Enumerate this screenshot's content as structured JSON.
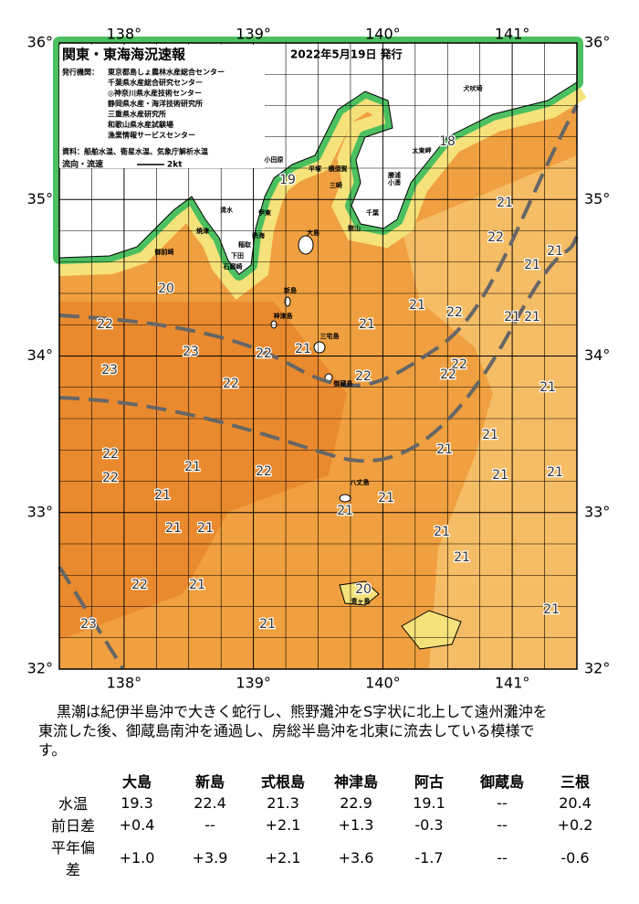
{
  "header": {
    "title": "関東・東海海況速報",
    "date": "2022年5月19日 発行",
    "issuer_label": "発行機関：",
    "issuers": [
      "東京都島しょ農林水産総合センター",
      "千葉県水産総合研究センター",
      "◎神奈川県水産技術センター",
      "静岡県水産・海洋技術研究所",
      "三重県水産研究所",
      "和歌山県水産試験場",
      "漁業情報サービスセンター"
    ],
    "source": "資料：船舶水温、衛星水温、気象庁解析水温",
    "legend_label": "流向・流速",
    "legend_speed": "2kt"
  },
  "map": {
    "xlim": [
      137.5,
      141.5
    ],
    "ylim": [
      32,
      36
    ],
    "xticks": [
      {
        "value": 138,
        "label": "138°"
      },
      {
        "value": 139,
        "label": "139°"
      },
      {
        "value": 140,
        "label": "140°"
      },
      {
        "value": 141,
        "label": "141°"
      }
    ],
    "yticks": [
      {
        "value": 32,
        "label": "32°"
      },
      {
        "value": 33,
        "label": "33°"
      },
      {
        "value": 34,
        "label": "34°"
      },
      {
        "value": 35,
        "label": "35°"
      },
      {
        "value": 36,
        "label": "36°"
      }
    ],
    "temperature_labels": [
      "18",
      "19",
      "21",
      "22",
      "21",
      "21",
      "20",
      "22",
      "21",
      "21",
      "21",
      "21",
      "22",
      "23",
      "22",
      "21",
      "22",
      "22",
      "22",
      "23",
      "22",
      "21",
      "21",
      "21",
      "22",
      "21",
      "22",
      "22",
      "21",
      "21",
      "21",
      "21",
      "21",
      "21",
      "21",
      "21",
      "21",
      "22",
      "21",
      "20",
      "21",
      "23",
      "21"
    ],
    "places": [
      "犬吠埼",
      "太東岬",
      "勝浦",
      "小湊",
      "館山",
      "千葉",
      "横須賀",
      "三崎",
      "平塚",
      "小田原",
      "伊東",
      "熱海",
      "稲取",
      "下田",
      "石廊崎",
      "清水",
      "焼津",
      "御前崎",
      "大島",
      "新島",
      "三宅島",
      "神津島",
      "御蔵島",
      "八丈島",
      "青ヶ島"
    ]
  },
  "description": [
    "黒潮は紀伊半島沖で大きく蛇行し、熊野灘沖をS字状に北上して遠州灘沖を",
    "東流した後、御蔵島南沖を通過し、房総半島沖を北東に流去している模様で",
    "す。"
  ],
  "table": {
    "columns": [
      "大島",
      "新島",
      "式根島",
      "神津島",
      "阿古",
      "御蔵島",
      "三根"
    ],
    "rows": [
      {
        "label": "水温",
        "values": [
          "19.3",
          "22.4",
          "21.3",
          "22.9",
          "19.1",
          "--",
          "20.4"
        ]
      },
      {
        "label": "前日差",
        "values": [
          "+0.4",
          "--",
          "+2.1",
          "+1.3",
          "-0.3",
          "--",
          "+0.2"
        ]
      },
      {
        "label": "平年偏差",
        "values": [
          "+1.0",
          "+3.9",
          "+2.1",
          "+3.6",
          "-1.7",
          "--",
          "-0.6"
        ]
      }
    ]
  }
}
